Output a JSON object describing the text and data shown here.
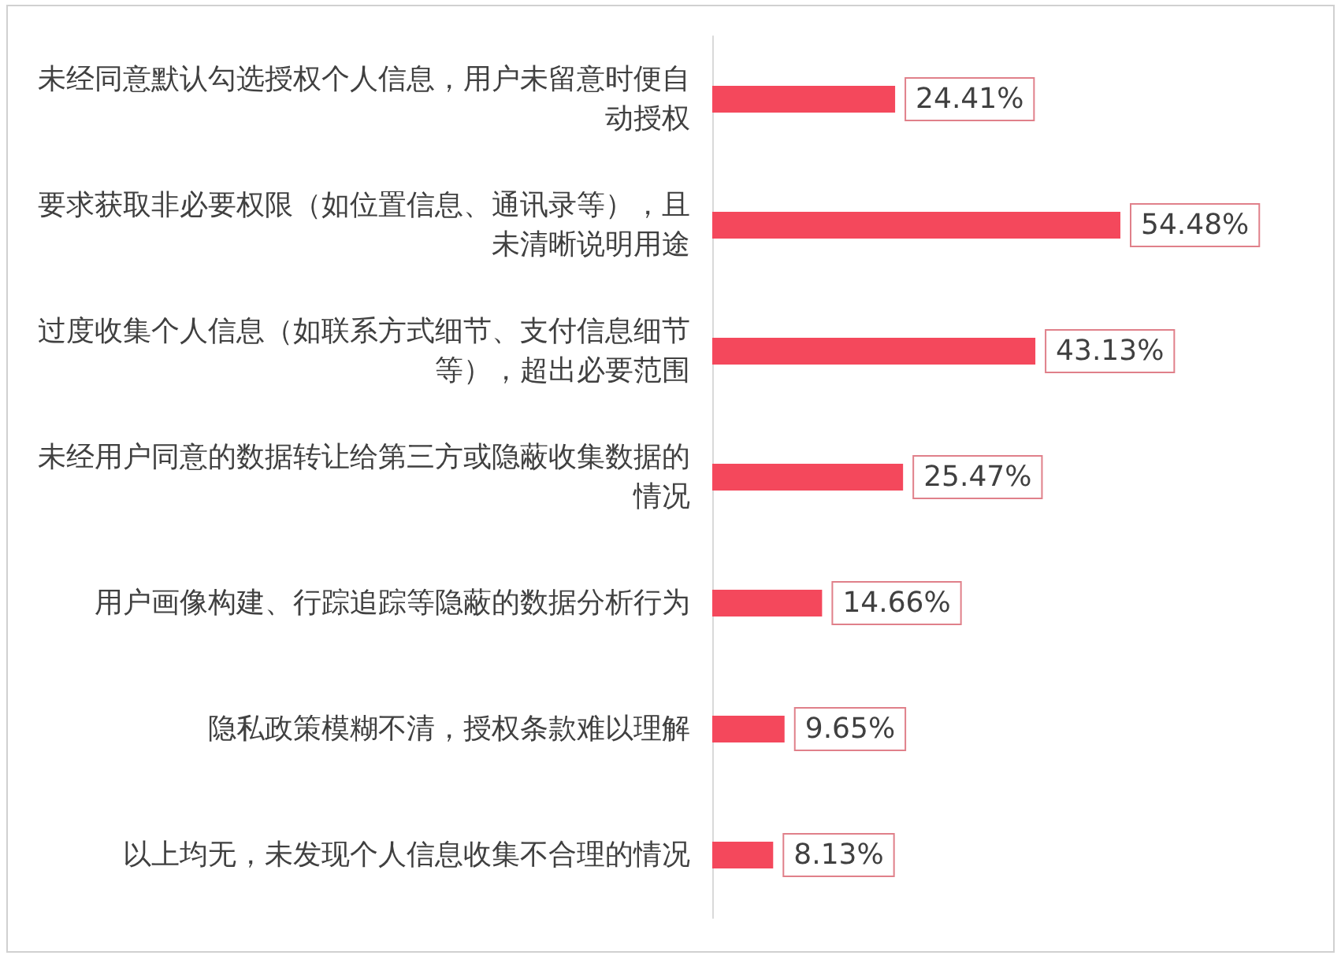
{
  "chart_data": {
    "type": "bar",
    "orientation": "horizontal",
    "categories": [
      "未经同意默认勾选授权个人信息，用户未留意时便自动授权",
      "要求获取非必要权限（如位置信息、通讯录等），且未清晰说明用途",
      "过度收集个人信息（如联系方式细节、支付信息细节等），超出必要范围",
      "未经用户同意的数据转让给第三方或隐蔽收集数据的情况",
      "用户画像构建、行踪追踪等隐蔽的数据分析行为",
      "隐私政策模糊不清，授权条款难以理解",
      "以上均无，未发现个人信息收集不合理的情况"
    ],
    "values": [
      24.41,
      54.48,
      43.13,
      25.47,
      14.66,
      9.65,
      8.13
    ],
    "value_labels": [
      "24.41%",
      "54.48%",
      "43.13%",
      "25.47%",
      "14.66%",
      "9.65%",
      "8.13%"
    ],
    "color": "#f4485c",
    "tick_labels": "y"
  }
}
